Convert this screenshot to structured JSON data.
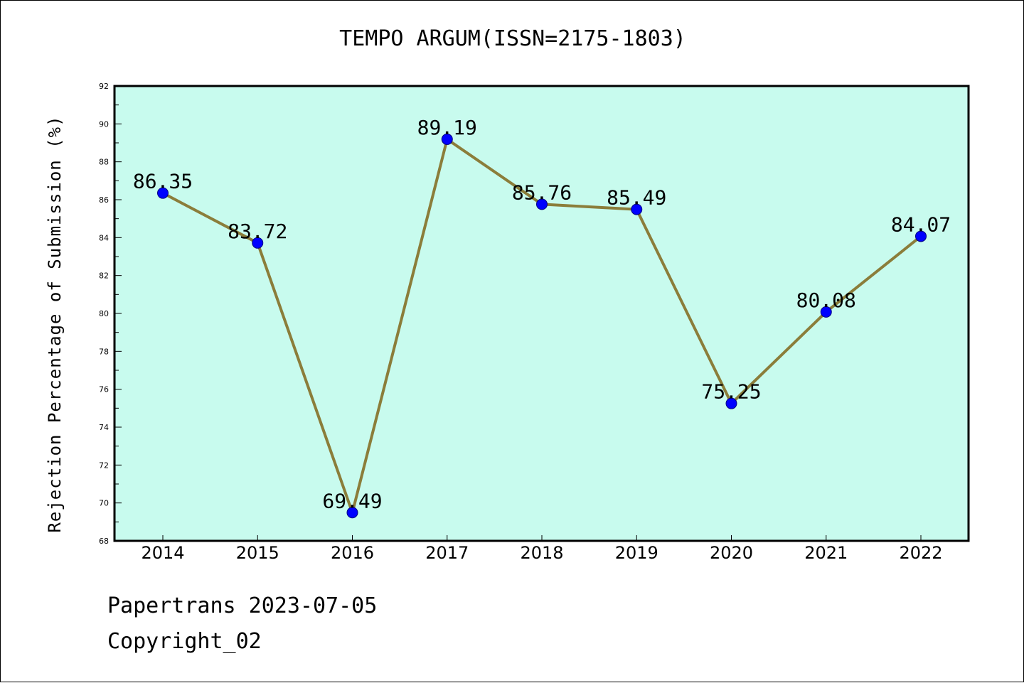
{
  "colors": {
    "plot_background": "#c8fbee",
    "line": "#8b7d3a",
    "marker": "#0000ff",
    "axis": "#000000"
  },
  "chart_data": {
    "type": "line",
    "title": "TEMPO ARGUM(ISSN=2175-1803)",
    "ylabel": "Rejection Percentage of Submission (%)",
    "xlabel": "",
    "categories": [
      "2014",
      "2015",
      "2016",
      "2017",
      "2018",
      "2019",
      "2020",
      "2021",
      "2022"
    ],
    "values": [
      86.35,
      83.72,
      69.49,
      89.19,
      85.76,
      85.49,
      75.25,
      80.08,
      84.07
    ],
    "data_labels": [
      "86.35",
      "83.72",
      "69.49",
      "89.19",
      "85.76",
      "85.49",
      "75.25",
      "80.08",
      "84.07"
    ],
    "ylim": [
      68,
      92
    ],
    "yticks": [
      "68",
      "70",
      "72",
      "74",
      "76",
      "78",
      "80",
      "82",
      "84",
      "86",
      "88",
      "90",
      "92"
    ],
    "grid": false,
    "legend": "none"
  },
  "footer": {
    "line1": "Papertrans 2023-07-05",
    "line2": "Copyright_02"
  }
}
